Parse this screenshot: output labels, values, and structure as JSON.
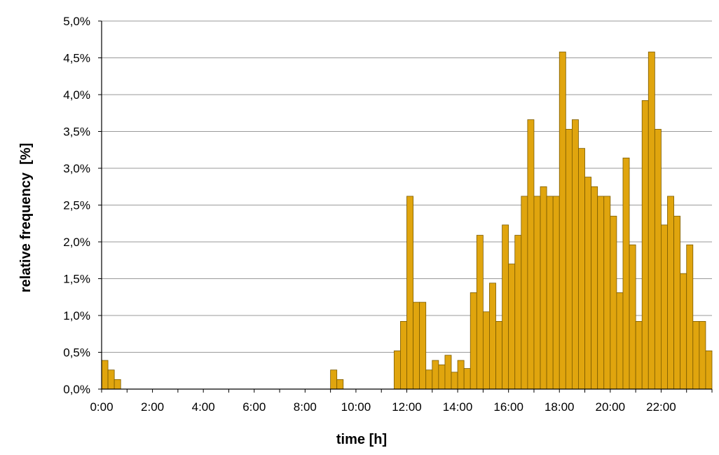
{
  "chart_data": {
    "type": "bar",
    "xlabel": "time [h]",
    "ylabel": "relative frequency  [%]",
    "bin_width_minutes": 15,
    "x_tick_labels": [
      "0:00",
      "2:00",
      "4:00",
      "6:00",
      "8:00",
      "10:00",
      "12:00",
      "14:00",
      "16:00",
      "18:00",
      "20:00",
      "22:00"
    ],
    "y_tick_labels": [
      "0,0%",
      "0,5%",
      "1,0%",
      "1,5%",
      "2,0%",
      "2,5%",
      "3,0%",
      "3,5%",
      "4,0%",
      "4,5%",
      "5,0%"
    ],
    "ylim": [
      0,
      5.0
    ],
    "xlim_hours": [
      0,
      24
    ],
    "grid": "horizontal",
    "bar_color": "#E0A50E",
    "bar_edge_color": "#7A5A00",
    "values": [
      0.39,
      0.26,
      0.13,
      0,
      0,
      0,
      0,
      0,
      0,
      0,
      0,
      0,
      0,
      0,
      0,
      0,
      0,
      0,
      0,
      0,
      0,
      0,
      0,
      0,
      0,
      0,
      0,
      0,
      0,
      0,
      0,
      0,
      0,
      0,
      0,
      0,
      0.26,
      0.13,
      0,
      0,
      0,
      0,
      0,
      0,
      0,
      0,
      0.52,
      0.92,
      2.62,
      1.18,
      1.18,
      0.26,
      0.39,
      0.33,
      0.46,
      0.23,
      0.39,
      0.28,
      1.31,
      2.09,
      1.05,
      1.44,
      0.92,
      2.23,
      1.7,
      2.09,
      2.62,
      3.66,
      2.62,
      2.75,
      2.62,
      2.62,
      4.58,
      3.53,
      3.66,
      3.27,
      2.88,
      2.75,
      2.62,
      2.62,
      2.35,
      1.31,
      3.14,
      1.96,
      0.92,
      3.92,
      4.58,
      3.53,
      2.23,
      2.62,
      2.35,
      1.57,
      1.96,
      0.92,
      0.92,
      0.52
    ]
  }
}
